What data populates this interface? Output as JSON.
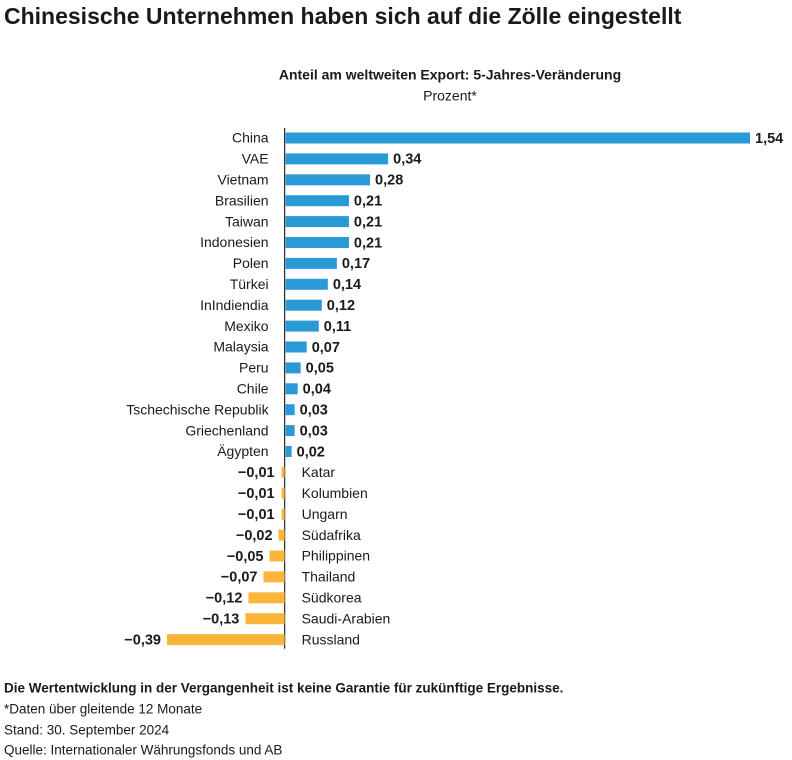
{
  "chart_data": {
    "type": "hbar",
    "title": "Chinesische Unternehmen haben sich auf die Zölle eingestellt",
    "subtitle": "Anteil am weltweiten Export: 5-Jahres-Veränderung",
    "unit": "Prozent*",
    "categories": [
      "China",
      "VAE",
      "Vietnam",
      "Brasilien",
      "Taiwan",
      "Indonesien",
      "Polen",
      "Türkei",
      "InIndiendia",
      "Mexiko",
      "Malaysia",
      "Peru",
      "Chile",
      "Tschechische Republik",
      "Griechenland",
      "Ägypten",
      "Katar",
      "Kolumbien",
      "Ungarn",
      "Südafrika",
      "Philippinen",
      "Thailand",
      "Südkorea",
      "Saudi-Arabien",
      "Russland"
    ],
    "values": [
      1.54,
      0.34,
      0.28,
      0.21,
      0.21,
      0.21,
      0.17,
      0.14,
      0.12,
      0.11,
      0.07,
      0.05,
      0.04,
      0.03,
      0.03,
      0.02,
      -0.01,
      -0.01,
      -0.01,
      -0.02,
      -0.05,
      -0.07,
      -0.12,
      -0.13,
      -0.39
    ],
    "value_labels": [
      "1,54",
      "0,34",
      "0,28",
      "0,21",
      "0,21",
      "0,21",
      "0,17",
      "0,14",
      "0,12",
      "0,11",
      "0,07",
      "0,05",
      "0,04",
      "0,03",
      "0,03",
      "0,02",
      "−0,01",
      "−0,01",
      "−0,01",
      "−0,02",
      "−0,05",
      "−0,07",
      "−0,12",
      "−0,13",
      "−0,39"
    ],
    "positive_color": "#2a9ad6",
    "negative_color": "#fbb63a",
    "notes": [
      "Die Wertentwicklung in der Vergangenheit ist keine Garantie für zukünftige Ergebnisse.",
      "*Daten über gleitende 12 Monate",
      "Stand: 30. September 2024",
      "Quelle: Internationaler Währungsfonds und AB"
    ]
  }
}
